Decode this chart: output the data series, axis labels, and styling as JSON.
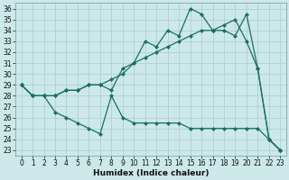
{
  "title": "",
  "xlabel": "Humidex (Indice chaleur)",
  "bg_color": "#cce8e8",
  "grid_color": "#aacccc",
  "line_color": "#1a7060",
  "xlim": [
    -0.5,
    23.5
  ],
  "ylim": [
    22.5,
    36.5
  ],
  "xticks": [
    0,
    1,
    2,
    3,
    4,
    5,
    6,
    7,
    8,
    9,
    10,
    11,
    12,
    13,
    14,
    15,
    16,
    17,
    18,
    19,
    20,
    21,
    22,
    23
  ],
  "yticks": [
    23,
    24,
    25,
    26,
    27,
    28,
    29,
    30,
    31,
    32,
    33,
    34,
    35,
    36
  ],
  "line1_x": [
    0,
    1,
    2,
    3,
    4,
    5,
    6,
    7,
    8,
    9,
    10,
    11,
    12,
    13,
    14,
    15,
    16,
    17,
    18,
    19,
    20,
    21,
    22,
    23
  ],
  "line1_y": [
    29.0,
    28.0,
    28.0,
    28.0,
    28.5,
    28.5,
    29.0,
    29.0,
    28.5,
    30.5,
    31.0,
    33.0,
    32.5,
    34.0,
    33.5,
    36.0,
    35.5,
    34.0,
    34.0,
    33.5,
    35.5,
    30.5,
    24.0,
    23.0
  ],
  "line2_x": [
    0,
    1,
    2,
    3,
    4,
    5,
    6,
    7,
    8,
    9,
    10,
    11,
    12,
    13,
    14,
    15,
    16,
    17,
    18,
    19,
    20,
    21,
    22,
    23
  ],
  "line2_y": [
    29.0,
    28.0,
    28.0,
    28.0,
    28.5,
    28.5,
    29.0,
    29.0,
    29.5,
    30.0,
    31.0,
    31.5,
    32.0,
    32.5,
    33.0,
    33.5,
    34.0,
    34.0,
    34.5,
    35.0,
    33.0,
    30.5,
    24.0,
    23.0
  ],
  "line3_x": [
    0,
    1,
    2,
    3,
    4,
    5,
    6,
    7,
    8,
    9,
    10,
    11,
    12,
    13,
    14,
    15,
    16,
    17,
    18,
    19,
    20,
    21,
    22,
    23
  ],
  "line3_y": [
    29.0,
    28.0,
    28.0,
    26.5,
    26.0,
    25.5,
    25.0,
    24.5,
    28.0,
    26.0,
    25.5,
    25.5,
    25.5,
    25.5,
    25.5,
    25.0,
    25.0,
    25.0,
    25.0,
    25.0,
    25.0,
    25.0,
    24.0,
    23.0
  ],
  "marker": "D",
  "markersize": 2.2,
  "linewidth": 0.9,
  "tick_fontsize": 5.5,
  "xlabel_fontsize": 6.5
}
